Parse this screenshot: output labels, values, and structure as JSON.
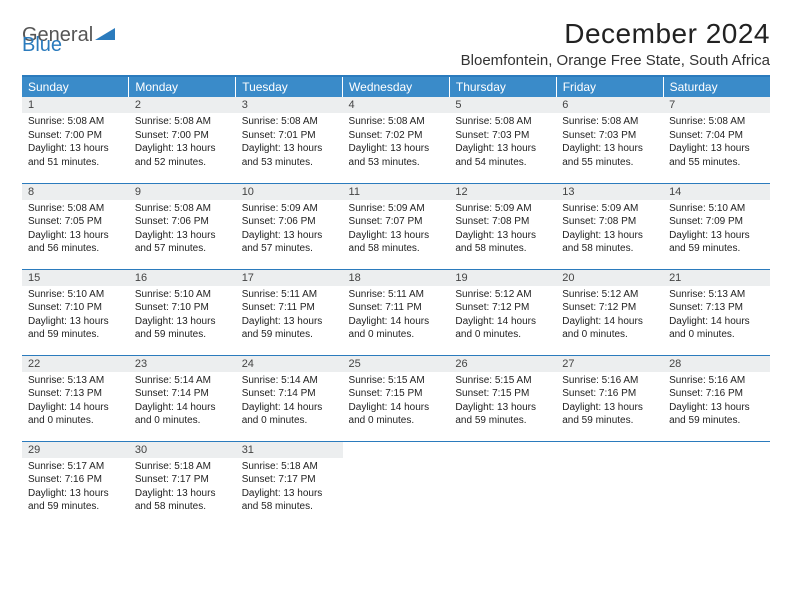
{
  "logo": {
    "text_general": "General",
    "text_blue": "Blue"
  },
  "title": "December 2024",
  "location": "Bloemfontein, Orange Free State, South Africa",
  "colors": {
    "header_bg": "#3a8bc9",
    "border": "#2b7bbd",
    "daynum_bg": "#eceeef",
    "text": "#222222",
    "page_bg": "#ffffff"
  },
  "weekdays": [
    "Sunday",
    "Monday",
    "Tuesday",
    "Wednesday",
    "Thursday",
    "Friday",
    "Saturday"
  ],
  "weeks": [
    [
      {
        "n": "1",
        "sr": "5:08 AM",
        "ss": "7:00 PM",
        "dl": "13 hours and 51 minutes."
      },
      {
        "n": "2",
        "sr": "5:08 AM",
        "ss": "7:00 PM",
        "dl": "13 hours and 52 minutes."
      },
      {
        "n": "3",
        "sr": "5:08 AM",
        "ss": "7:01 PM",
        "dl": "13 hours and 53 minutes."
      },
      {
        "n": "4",
        "sr": "5:08 AM",
        "ss": "7:02 PM",
        "dl": "13 hours and 53 minutes."
      },
      {
        "n": "5",
        "sr": "5:08 AM",
        "ss": "7:03 PM",
        "dl": "13 hours and 54 minutes."
      },
      {
        "n": "6",
        "sr": "5:08 AM",
        "ss": "7:03 PM",
        "dl": "13 hours and 55 minutes."
      },
      {
        "n": "7",
        "sr": "5:08 AM",
        "ss": "7:04 PM",
        "dl": "13 hours and 55 minutes."
      }
    ],
    [
      {
        "n": "8",
        "sr": "5:08 AM",
        "ss": "7:05 PM",
        "dl": "13 hours and 56 minutes."
      },
      {
        "n": "9",
        "sr": "5:08 AM",
        "ss": "7:06 PM",
        "dl": "13 hours and 57 minutes."
      },
      {
        "n": "10",
        "sr": "5:09 AM",
        "ss": "7:06 PM",
        "dl": "13 hours and 57 minutes."
      },
      {
        "n": "11",
        "sr": "5:09 AM",
        "ss": "7:07 PM",
        "dl": "13 hours and 58 minutes."
      },
      {
        "n": "12",
        "sr": "5:09 AM",
        "ss": "7:08 PM",
        "dl": "13 hours and 58 minutes."
      },
      {
        "n": "13",
        "sr": "5:09 AM",
        "ss": "7:08 PM",
        "dl": "13 hours and 58 minutes."
      },
      {
        "n": "14",
        "sr": "5:10 AM",
        "ss": "7:09 PM",
        "dl": "13 hours and 59 minutes."
      }
    ],
    [
      {
        "n": "15",
        "sr": "5:10 AM",
        "ss": "7:10 PM",
        "dl": "13 hours and 59 minutes."
      },
      {
        "n": "16",
        "sr": "5:10 AM",
        "ss": "7:10 PM",
        "dl": "13 hours and 59 minutes."
      },
      {
        "n": "17",
        "sr": "5:11 AM",
        "ss": "7:11 PM",
        "dl": "13 hours and 59 minutes."
      },
      {
        "n": "18",
        "sr": "5:11 AM",
        "ss": "7:11 PM",
        "dl": "14 hours and 0 minutes."
      },
      {
        "n": "19",
        "sr": "5:12 AM",
        "ss": "7:12 PM",
        "dl": "14 hours and 0 minutes."
      },
      {
        "n": "20",
        "sr": "5:12 AM",
        "ss": "7:12 PM",
        "dl": "14 hours and 0 minutes."
      },
      {
        "n": "21",
        "sr": "5:13 AM",
        "ss": "7:13 PM",
        "dl": "14 hours and 0 minutes."
      }
    ],
    [
      {
        "n": "22",
        "sr": "5:13 AM",
        "ss": "7:13 PM",
        "dl": "14 hours and 0 minutes."
      },
      {
        "n": "23",
        "sr": "5:14 AM",
        "ss": "7:14 PM",
        "dl": "14 hours and 0 minutes."
      },
      {
        "n": "24",
        "sr": "5:14 AM",
        "ss": "7:14 PM",
        "dl": "14 hours and 0 minutes."
      },
      {
        "n": "25",
        "sr": "5:15 AM",
        "ss": "7:15 PM",
        "dl": "14 hours and 0 minutes."
      },
      {
        "n": "26",
        "sr": "5:15 AM",
        "ss": "7:15 PM",
        "dl": "13 hours and 59 minutes."
      },
      {
        "n": "27",
        "sr": "5:16 AM",
        "ss": "7:16 PM",
        "dl": "13 hours and 59 minutes."
      },
      {
        "n": "28",
        "sr": "5:16 AM",
        "ss": "7:16 PM",
        "dl": "13 hours and 59 minutes."
      }
    ],
    [
      {
        "n": "29",
        "sr": "5:17 AM",
        "ss": "7:16 PM",
        "dl": "13 hours and 59 minutes."
      },
      {
        "n": "30",
        "sr": "5:18 AM",
        "ss": "7:17 PM",
        "dl": "13 hours and 58 minutes."
      },
      {
        "n": "31",
        "sr": "5:18 AM",
        "ss": "7:17 PM",
        "dl": "13 hours and 58 minutes."
      },
      null,
      null,
      null,
      null
    ]
  ],
  "labels": {
    "sunrise": "Sunrise:",
    "sunset": "Sunset:",
    "daylight": "Daylight:"
  }
}
